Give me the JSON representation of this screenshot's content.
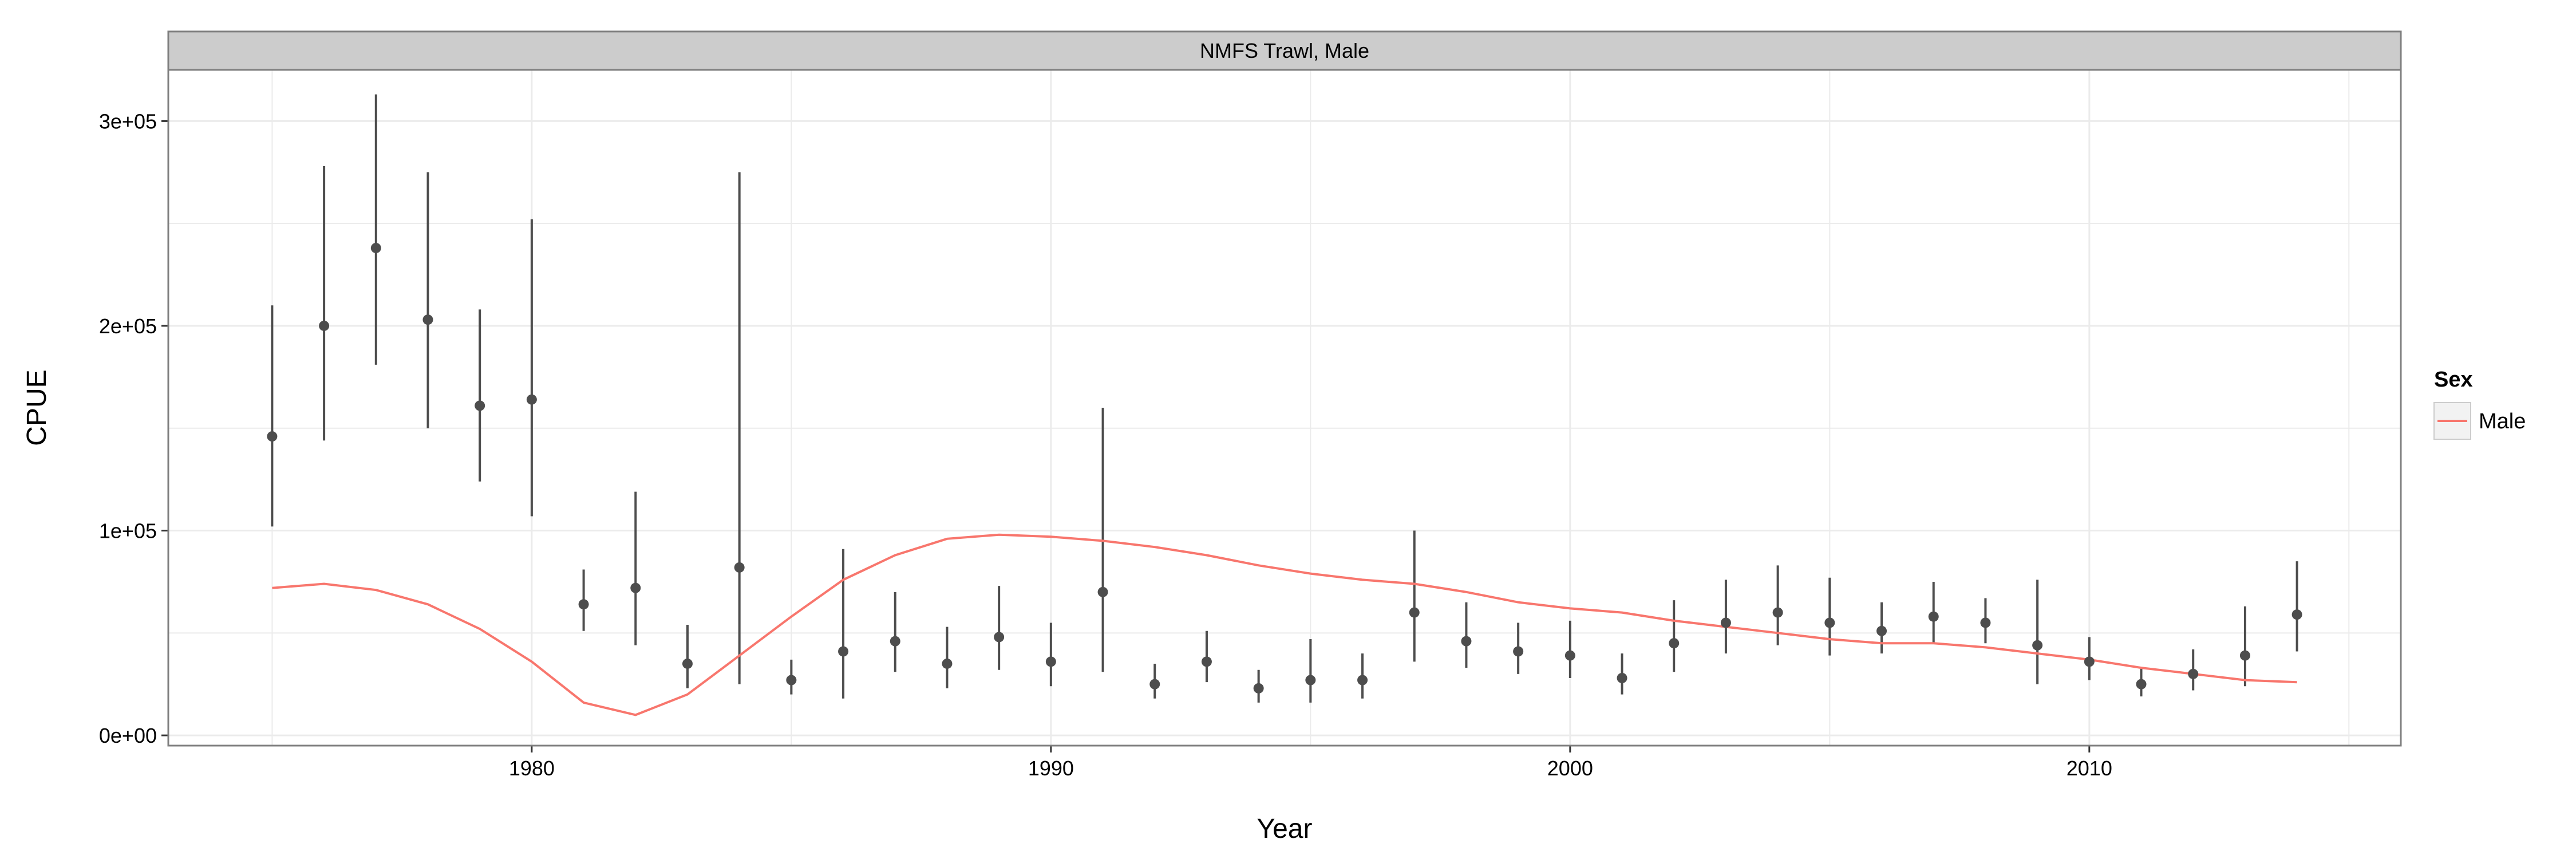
{
  "chart_data": {
    "type": "line",
    "title": "",
    "panel_title": "NMFS Trawl, Male",
    "xlabel": "Year",
    "ylabel": "CPUE",
    "xlim": [
      1973,
      2016
    ],
    "ylim": [
      -5000,
      325000
    ],
    "x_ticks": [
      1980,
      1990,
      2000,
      2010
    ],
    "x_tick_labels": [
      "1980",
      "1990",
      "2000",
      "2010"
    ],
    "y_ticks": [
      0,
      100000,
      200000,
      300000
    ],
    "y_tick_labels": [
      "0e+00",
      "1e+05",
      "2e+05",
      "3e+05"
    ],
    "grid": true,
    "legend": {
      "title": "Sex",
      "placement": "right",
      "entries": [
        {
          "label": "Male",
          "color": "#F8766D"
        }
      ]
    },
    "colors": {
      "fitted_line": "#F8766D",
      "observed": "#4d4d4d",
      "strip_background": "#cccccc",
      "grid": "#ebebeb",
      "panel_border": "#7f7f7f"
    },
    "observed": [
      {
        "year": 1975,
        "cpue": 146000,
        "lower": 102000,
        "upper": 210000
      },
      {
        "year": 1976,
        "cpue": 200000,
        "lower": 144000,
        "upper": 278000
      },
      {
        "year": 1977,
        "cpue": 238000,
        "lower": 181000,
        "upper": 313000
      },
      {
        "year": 1978,
        "cpue": 203000,
        "lower": 150000,
        "upper": 275000
      },
      {
        "year": 1979,
        "cpue": 161000,
        "lower": 124000,
        "upper": 208000
      },
      {
        "year": 1980,
        "cpue": 164000,
        "lower": 107000,
        "upper": 252000
      },
      {
        "year": 1981,
        "cpue": 64000,
        "lower": 51000,
        "upper": 81000
      },
      {
        "year": 1982,
        "cpue": 72000,
        "lower": 44000,
        "upper": 119000
      },
      {
        "year": 1983,
        "cpue": 35000,
        "lower": 23000,
        "upper": 54000
      },
      {
        "year": 1984,
        "cpue": 82000,
        "lower": 25000,
        "upper": 275000
      },
      {
        "year": 1985,
        "cpue": 27000,
        "lower": 20000,
        "upper": 37000
      },
      {
        "year": 1986,
        "cpue": 41000,
        "lower": 18000,
        "upper": 91000
      },
      {
        "year": 1987,
        "cpue": 46000,
        "lower": 31000,
        "upper": 70000
      },
      {
        "year": 1988,
        "cpue": 35000,
        "lower": 23000,
        "upper": 53000
      },
      {
        "year": 1989,
        "cpue": 48000,
        "lower": 32000,
        "upper": 73000
      },
      {
        "year": 1990,
        "cpue": 36000,
        "lower": 24000,
        "upper": 55000
      },
      {
        "year": 1991,
        "cpue": 70000,
        "lower": 31000,
        "upper": 160000
      },
      {
        "year": 1992,
        "cpue": 25000,
        "lower": 18000,
        "upper": 35000
      },
      {
        "year": 1993,
        "cpue": 36000,
        "lower": 26000,
        "upper": 51000
      },
      {
        "year": 1994,
        "cpue": 23000,
        "lower": 16000,
        "upper": 32000
      },
      {
        "year": 1995,
        "cpue": 27000,
        "lower": 16000,
        "upper": 47000
      },
      {
        "year": 1996,
        "cpue": 27000,
        "lower": 18000,
        "upper": 40000
      },
      {
        "year": 1997,
        "cpue": 60000,
        "lower": 36000,
        "upper": 100000
      },
      {
        "year": 1998,
        "cpue": 46000,
        "lower": 33000,
        "upper": 65000
      },
      {
        "year": 1999,
        "cpue": 41000,
        "lower": 30000,
        "upper": 55000
      },
      {
        "year": 2000,
        "cpue": 39000,
        "lower": 28000,
        "upper": 56000
      },
      {
        "year": 2001,
        "cpue": 28000,
        "lower": 20000,
        "upper": 40000
      },
      {
        "year": 2002,
        "cpue": 45000,
        "lower": 31000,
        "upper": 66000
      },
      {
        "year": 2003,
        "cpue": 55000,
        "lower": 40000,
        "upper": 76000
      },
      {
        "year": 2004,
        "cpue": 60000,
        "lower": 44000,
        "upper": 83000
      },
      {
        "year": 2005,
        "cpue": 55000,
        "lower": 39000,
        "upper": 77000
      },
      {
        "year": 2006,
        "cpue": 51000,
        "lower": 40000,
        "upper": 65000
      },
      {
        "year": 2007,
        "cpue": 58000,
        "lower": 45000,
        "upper": 75000
      },
      {
        "year": 2008,
        "cpue": 55000,
        "lower": 45000,
        "upper": 67000
      },
      {
        "year": 2009,
        "cpue": 44000,
        "lower": 25000,
        "upper": 76000
      },
      {
        "year": 2010,
        "cpue": 36000,
        "lower": 27000,
        "upper": 48000
      },
      {
        "year": 2011,
        "cpue": 25000,
        "lower": 19000,
        "upper": 33000
      },
      {
        "year": 2012,
        "cpue": 30000,
        "lower": 22000,
        "upper": 42000
      },
      {
        "year": 2013,
        "cpue": 39000,
        "lower": 24000,
        "upper": 63000
      },
      {
        "year": 2014,
        "cpue": 59000,
        "lower": 41000,
        "upper": 85000
      }
    ],
    "fitted": {
      "name": "Male",
      "x": [
        1975,
        1976,
        1977,
        1978,
        1979,
        1980,
        1981,
        1982,
        1983,
        1984,
        1985,
        1986,
        1987,
        1988,
        1989,
        1990,
        1991,
        1992,
        1993,
        1994,
        1995,
        1996,
        1997,
        1998,
        1999,
        2000,
        2001,
        2002,
        2003,
        2004,
        2005,
        2006,
        2007,
        2008,
        2009,
        2010,
        2011,
        2012,
        2013,
        2014
      ],
      "y": [
        72000,
        74000,
        71000,
        64000,
        52000,
        36000,
        16000,
        10000,
        20000,
        39000,
        58000,
        76000,
        88000,
        96000,
        98000,
        97000,
        95000,
        92000,
        88000,
        83000,
        79000,
        76000,
        74000,
        70000,
        65000,
        62000,
        60000,
        56000,
        53000,
        50000,
        47000,
        45000,
        45000,
        43000,
        40000,
        37000,
        33000,
        30000,
        27000,
        26000
      ]
    }
  }
}
